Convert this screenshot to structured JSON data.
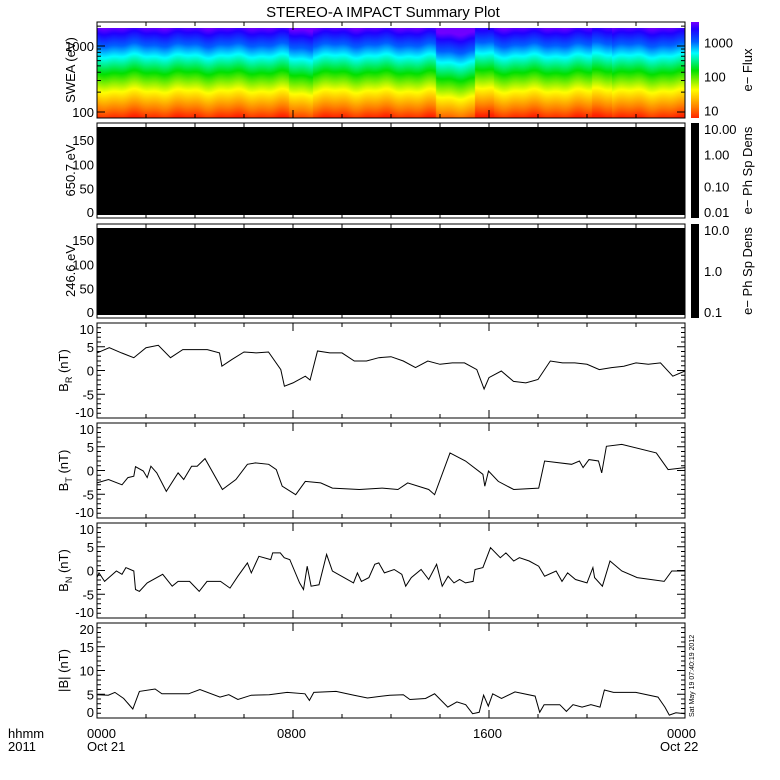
{
  "title": "STEREO-A IMPACT Summary Plot",
  "timestamp": "Sat May 19 07:40:19 2012",
  "x_axis": {
    "row1_label": "hhmm",
    "row2_label": "2011",
    "range_hours": [
      0,
      24
    ],
    "ticks": [
      {
        "hour": 0,
        "time": "0000",
        "date": "Oct 21"
      },
      {
        "hour": 8,
        "time": "0800",
        "date": ""
      },
      {
        "hour": 16,
        "time": "1600",
        "date": ""
      },
      {
        "hour": 24,
        "time": "0000",
        "date": "Oct 22"
      }
    ]
  },
  "chart_data": [
    {
      "type": "heatmap",
      "name": "swea",
      "ylabel": "SWEA (eV)",
      "yscale": "log",
      "ylim": [
        100,
        2300
      ],
      "yticks": [
        {
          "value": 100,
          "label": "100"
        },
        {
          "value": 1000,
          "label": "1000"
        }
      ],
      "colorbar": {
        "label": "e− Flux",
        "scale": "log",
        "range": [
          6,
          4000
        ],
        "ticks": [
          {
            "value": 10,
            "label": "10"
          },
          {
            "value": 100,
            "label": "100"
          },
          {
            "value": 1000,
            "label": "1000"
          }
        ],
        "colors": [
          "#ff2000",
          "#ff8000",
          "#ffff00",
          "#00e000",
          "#00ffff",
          "#0060ff",
          "#2000ff",
          "#7000ff"
        ]
      }
    },
    {
      "type": "heatmap",
      "name": "pad-650",
      "ylabel": "650.7 eV",
      "ylim": [
        0,
        185
      ],
      "yticks": [
        {
          "value": 0,
          "label": "0"
        },
        {
          "value": 50,
          "label": "50"
        },
        {
          "value": 100,
          "label": "100"
        },
        {
          "value": 150,
          "label": "150"
        }
      ],
      "fill": "#000000",
      "colorbar": {
        "label": "e− Ph Sp Dens",
        "scale": "log",
        "range": [
          0.01,
          10
        ],
        "ticks": [
          {
            "value": 10,
            "label": "10.00"
          },
          {
            "value": 1,
            "label": "1.00"
          },
          {
            "value": 0.1,
            "label": "0.10"
          },
          {
            "value": 0.01,
            "label": "0.01"
          }
        ]
      }
    },
    {
      "type": "heatmap",
      "name": "pad-246",
      "ylabel": "246.6 eV",
      "ylim": [
        0,
        185
      ],
      "yticks": [
        {
          "value": 0,
          "label": "0"
        },
        {
          "value": 50,
          "label": "50"
        },
        {
          "value": 100,
          "label": "100"
        },
        {
          "value": 150,
          "label": "150"
        }
      ],
      "fill": "#000000",
      "colorbar": {
        "label": "e− Ph Sp Dens",
        "scale": "log",
        "range": [
          0.1,
          10
        ],
        "ticks": [
          {
            "value": 10,
            "label": "10.0"
          },
          {
            "value": 1,
            "label": "1.0"
          },
          {
            "value": 0.1,
            "label": "0.1"
          }
        ]
      }
    },
    {
      "type": "line",
      "name": "br",
      "ylabel": "B",
      "ylabel_sub": "R",
      "ylabel_unit": " (nT)",
      "ylim": [
        -10,
        10
      ],
      "yticks": [
        {
          "value": -10,
          "label": "-10"
        },
        {
          "value": -5,
          "label": "-5"
        },
        {
          "value": 0,
          "label": "0"
        },
        {
          "value": 5,
          "label": "5"
        },
        {
          "value": 10,
          "label": "10"
        }
      ],
      "x": [
        0,
        0.5,
        1,
        1.5,
        2,
        2.5,
        3,
        3.5,
        4,
        4.5,
        5,
        5.1,
        5.5,
        6,
        6.5,
        7,
        7.5,
        7.65,
        8,
        8.5,
        8.7,
        9,
        9.5,
        10,
        10.5,
        11,
        11.5,
        12,
        12.5,
        13,
        13.5,
        14,
        14.5,
        15,
        15.5,
        15.8,
        16,
        16.5,
        17,
        17.5,
        18,
        18.5,
        19,
        19.5,
        20,
        20.5,
        21,
        21.5,
        22,
        22.5,
        23,
        23.5,
        24
      ],
      "y": [
        3.7,
        4.8,
        3.7,
        2.7,
        4.8,
        5.3,
        2.7,
        4.4,
        4.4,
        4.4,
        3.7,
        0.9,
        2.3,
        3.9,
        3.7,
        3.9,
        0.2,
        -3.3,
        -2.6,
        -1.2,
        -2.0,
        4.1,
        3.7,
        3.7,
        2.0,
        2.0,
        2.7,
        2.9,
        2.0,
        0.6,
        2.0,
        1.3,
        1.6,
        1.6,
        0.2,
        -3.9,
        -1.5,
        -0.1,
        -2.3,
        -2.6,
        -1.9,
        2.0,
        1.6,
        1.6,
        1.3,
        0.2,
        0.6,
        0.9,
        1.6,
        1.3,
        1.6,
        -1.2,
        -0.1
      ]
    },
    {
      "type": "line",
      "name": "bt",
      "ylabel": "B",
      "ylabel_sub": "T",
      "ylabel_unit": " (nT)",
      "ylim": [
        -10,
        10
      ],
      "yticks": [
        {
          "value": -10,
          "label": "-10"
        },
        {
          "value": -5,
          "label": "-5"
        },
        {
          "value": 0,
          "label": "0"
        },
        {
          "value": 5,
          "label": "5"
        },
        {
          "value": 10,
          "label": "10"
        }
      ],
      "x": [
        0,
        0.47,
        1.02,
        1.26,
        1.5,
        1.57,
        1.89,
        2.05,
        2.2,
        2.44,
        2.83,
        3.31,
        3.54,
        3.86,
        4.09,
        4.41,
        5.12,
        5.67,
        6.14,
        6.46,
        7.01,
        7.32,
        7.56,
        8.11,
        8.5,
        9.13,
        9.61,
        10.71,
        11.65,
        12.28,
        12.68,
        13.54,
        13.78,
        14.41,
        15.04,
        15.75,
        15.83,
        15.98,
        16.38,
        17.01,
        18.03,
        18.27,
        19.37,
        19.69,
        19.84,
        20.08,
        20.47,
        20.6,
        20.79,
        21.42,
        22.83,
        23.31,
        24
      ],
      "y": [
        -2.6,
        -1.9,
        -3.0,
        -1.5,
        -1.2,
        0.8,
        -0.1,
        -1.5,
        0.9,
        -0.5,
        -4.4,
        -0.5,
        -1.9,
        0.9,
        0.9,
        2.5,
        -4.0,
        -1.9,
        1.3,
        1.6,
        1.3,
        0.2,
        -3.3,
        -5.1,
        -2.3,
        -2.6,
        -3.7,
        -4.0,
        -3.7,
        -4.0,
        -2.6,
        -4.0,
        -5.1,
        3.7,
        2.0,
        -0.8,
        -3.3,
        -0.1,
        -2.3,
        -4.0,
        -3.7,
        2.0,
        1.3,
        2.0,
        0.6,
        2.3,
        2.0,
        -0.5,
        5.1,
        5.5,
        3.7,
        0.2,
        0.6
      ]
    },
    {
      "type": "line",
      "name": "bn",
      "ylabel": "B",
      "ylabel_sub": "N",
      "ylabel_unit": " (nT)",
      "ylim": [
        -10,
        10
      ],
      "yticks": [
        {
          "value": -10,
          "label": "-10"
        },
        {
          "value": -5,
          "label": "-5"
        },
        {
          "value": 0,
          "label": "0"
        },
        {
          "value": 5,
          "label": "5"
        },
        {
          "value": 10,
          "label": "10"
        }
      ],
      "x": [
        0,
        0.08,
        0.31,
        0.79,
        1.02,
        1.18,
        1.5,
        1.57,
        1.73,
        2.05,
        2.68,
        3.07,
        3.31,
        3.78,
        4.17,
        4.49,
        5.04,
        5.43,
        5.75,
        6.14,
        6.3,
        6.61,
        7.09,
        7.17,
        7.48,
        7.64,
        7.87,
        8.27,
        8.43,
        8.58,
        8.74,
        9.06,
        9.37,
        9.61,
        10.08,
        10.47,
        10.63,
        10.79,
        11.1,
        11.34,
        11.5,
        11.73,
        12.13,
        12.44,
        12.6,
        12.83,
        13.23,
        13.54,
        13.86,
        14.09,
        14.33,
        14.57,
        14.8,
        15.04,
        15.35,
        15.43,
        15.75,
        16.06,
        16.46,
        16.69,
        17.01,
        17.24,
        17.64,
        18.03,
        18.27,
        18.74,
        18.98,
        19.21,
        19.53,
        20,
        20.24,
        20.31,
        20.63,
        20.94,
        21.42,
        22.05,
        23.15,
        23.46,
        24
      ],
      "y": [
        -1.5,
        -0.5,
        -2.3,
        -0.1,
        -0.8,
        0.6,
        -0.1,
        -4.0,
        -4.4,
        -2.6,
        -0.8,
        -3.3,
        -2.3,
        -2.3,
        -4.4,
        -2.3,
        -2.3,
        -3.7,
        -1.2,
        1.6,
        -0.5,
        3.0,
        2.3,
        3.7,
        3.7,
        2.7,
        2.3,
        -2.6,
        -4.0,
        0.9,
        -3.3,
        -3.0,
        3.4,
        -0.1,
        -1.5,
        -2.6,
        -0.5,
        -2.3,
        -1.5,
        1.3,
        1.6,
        -0.5,
        0.2,
        -0.8,
        -3.3,
        -1.5,
        0.2,
        -1.9,
        1.3,
        -3.3,
        -1.2,
        -2.6,
        -1.9,
        -2.6,
        -2.3,
        0.2,
        0.6,
        4.8,
        2.7,
        3.7,
        2.0,
        2.7,
        2.0,
        0.9,
        -1.2,
        -0.1,
        -2.3,
        -0.5,
        -1.9,
        -2.6,
        0.6,
        -1.5,
        -3.3,
        2.0,
        -0.1,
        -1.5,
        -2.3,
        -0.1,
        -0.1
      ]
    },
    {
      "type": "line",
      "name": "bmag",
      "ylabel": "|B|",
      "ylabel_sub": "",
      "ylabel_unit": " (nT)",
      "ylim": [
        0,
        20
      ],
      "yticks": [
        {
          "value": 0,
          "label": "0"
        },
        {
          "value": 5,
          "label": "5"
        },
        {
          "value": 10,
          "label": "10"
        },
        {
          "value": 15,
          "label": "15"
        },
        {
          "value": 20,
          "label": "20"
        }
      ],
      "x": [
        0,
        0.46,
        0.73,
        1.09,
        1.46,
        1.73,
        2.37,
        2.65,
        3.74,
        4.2,
        5.02,
        5.38,
        5.75,
        6.3,
        7.03,
        7.76,
        8.49,
        8.67,
        8.85,
        9.76,
        10.49,
        11.04,
        11.95,
        12.5,
        12.77,
        13.41,
        13.78,
        14.32,
        14.69,
        15.05,
        15.33,
        15.6,
        15.78,
        15.97,
        16.15,
        16.51,
        17.06,
        17.88,
        18.07,
        18.25,
        18.89,
        19.16,
        19.43,
        19.8,
        20.16,
        20.53,
        20.71,
        21.08,
        21.99,
        22.9,
        23.18,
        23.36,
        23.63,
        24
      ],
      "y": [
        4.9,
        4.8,
        5.4,
        4.1,
        1.9,
        5.6,
        6.1,
        5.1,
        5.1,
        6.0,
        4.4,
        4.9,
        3.9,
        4.8,
        4.9,
        5.4,
        5.1,
        3.7,
        5.4,
        5.6,
        4.8,
        4.2,
        4.8,
        4.9,
        3.9,
        4.1,
        5.1,
        2.3,
        3.4,
        2.8,
        0.9,
        1.2,
        4.8,
        2.5,
        5.1,
        4.1,
        5.5,
        4.6,
        1.2,
        2.8,
        2.8,
        1.4,
        2.8,
        2.3,
        2.8,
        2.3,
        5.9,
        5.4,
        5.4,
        4.4,
        2.3,
        0.6,
        1.1,
        0.9
      ]
    }
  ]
}
